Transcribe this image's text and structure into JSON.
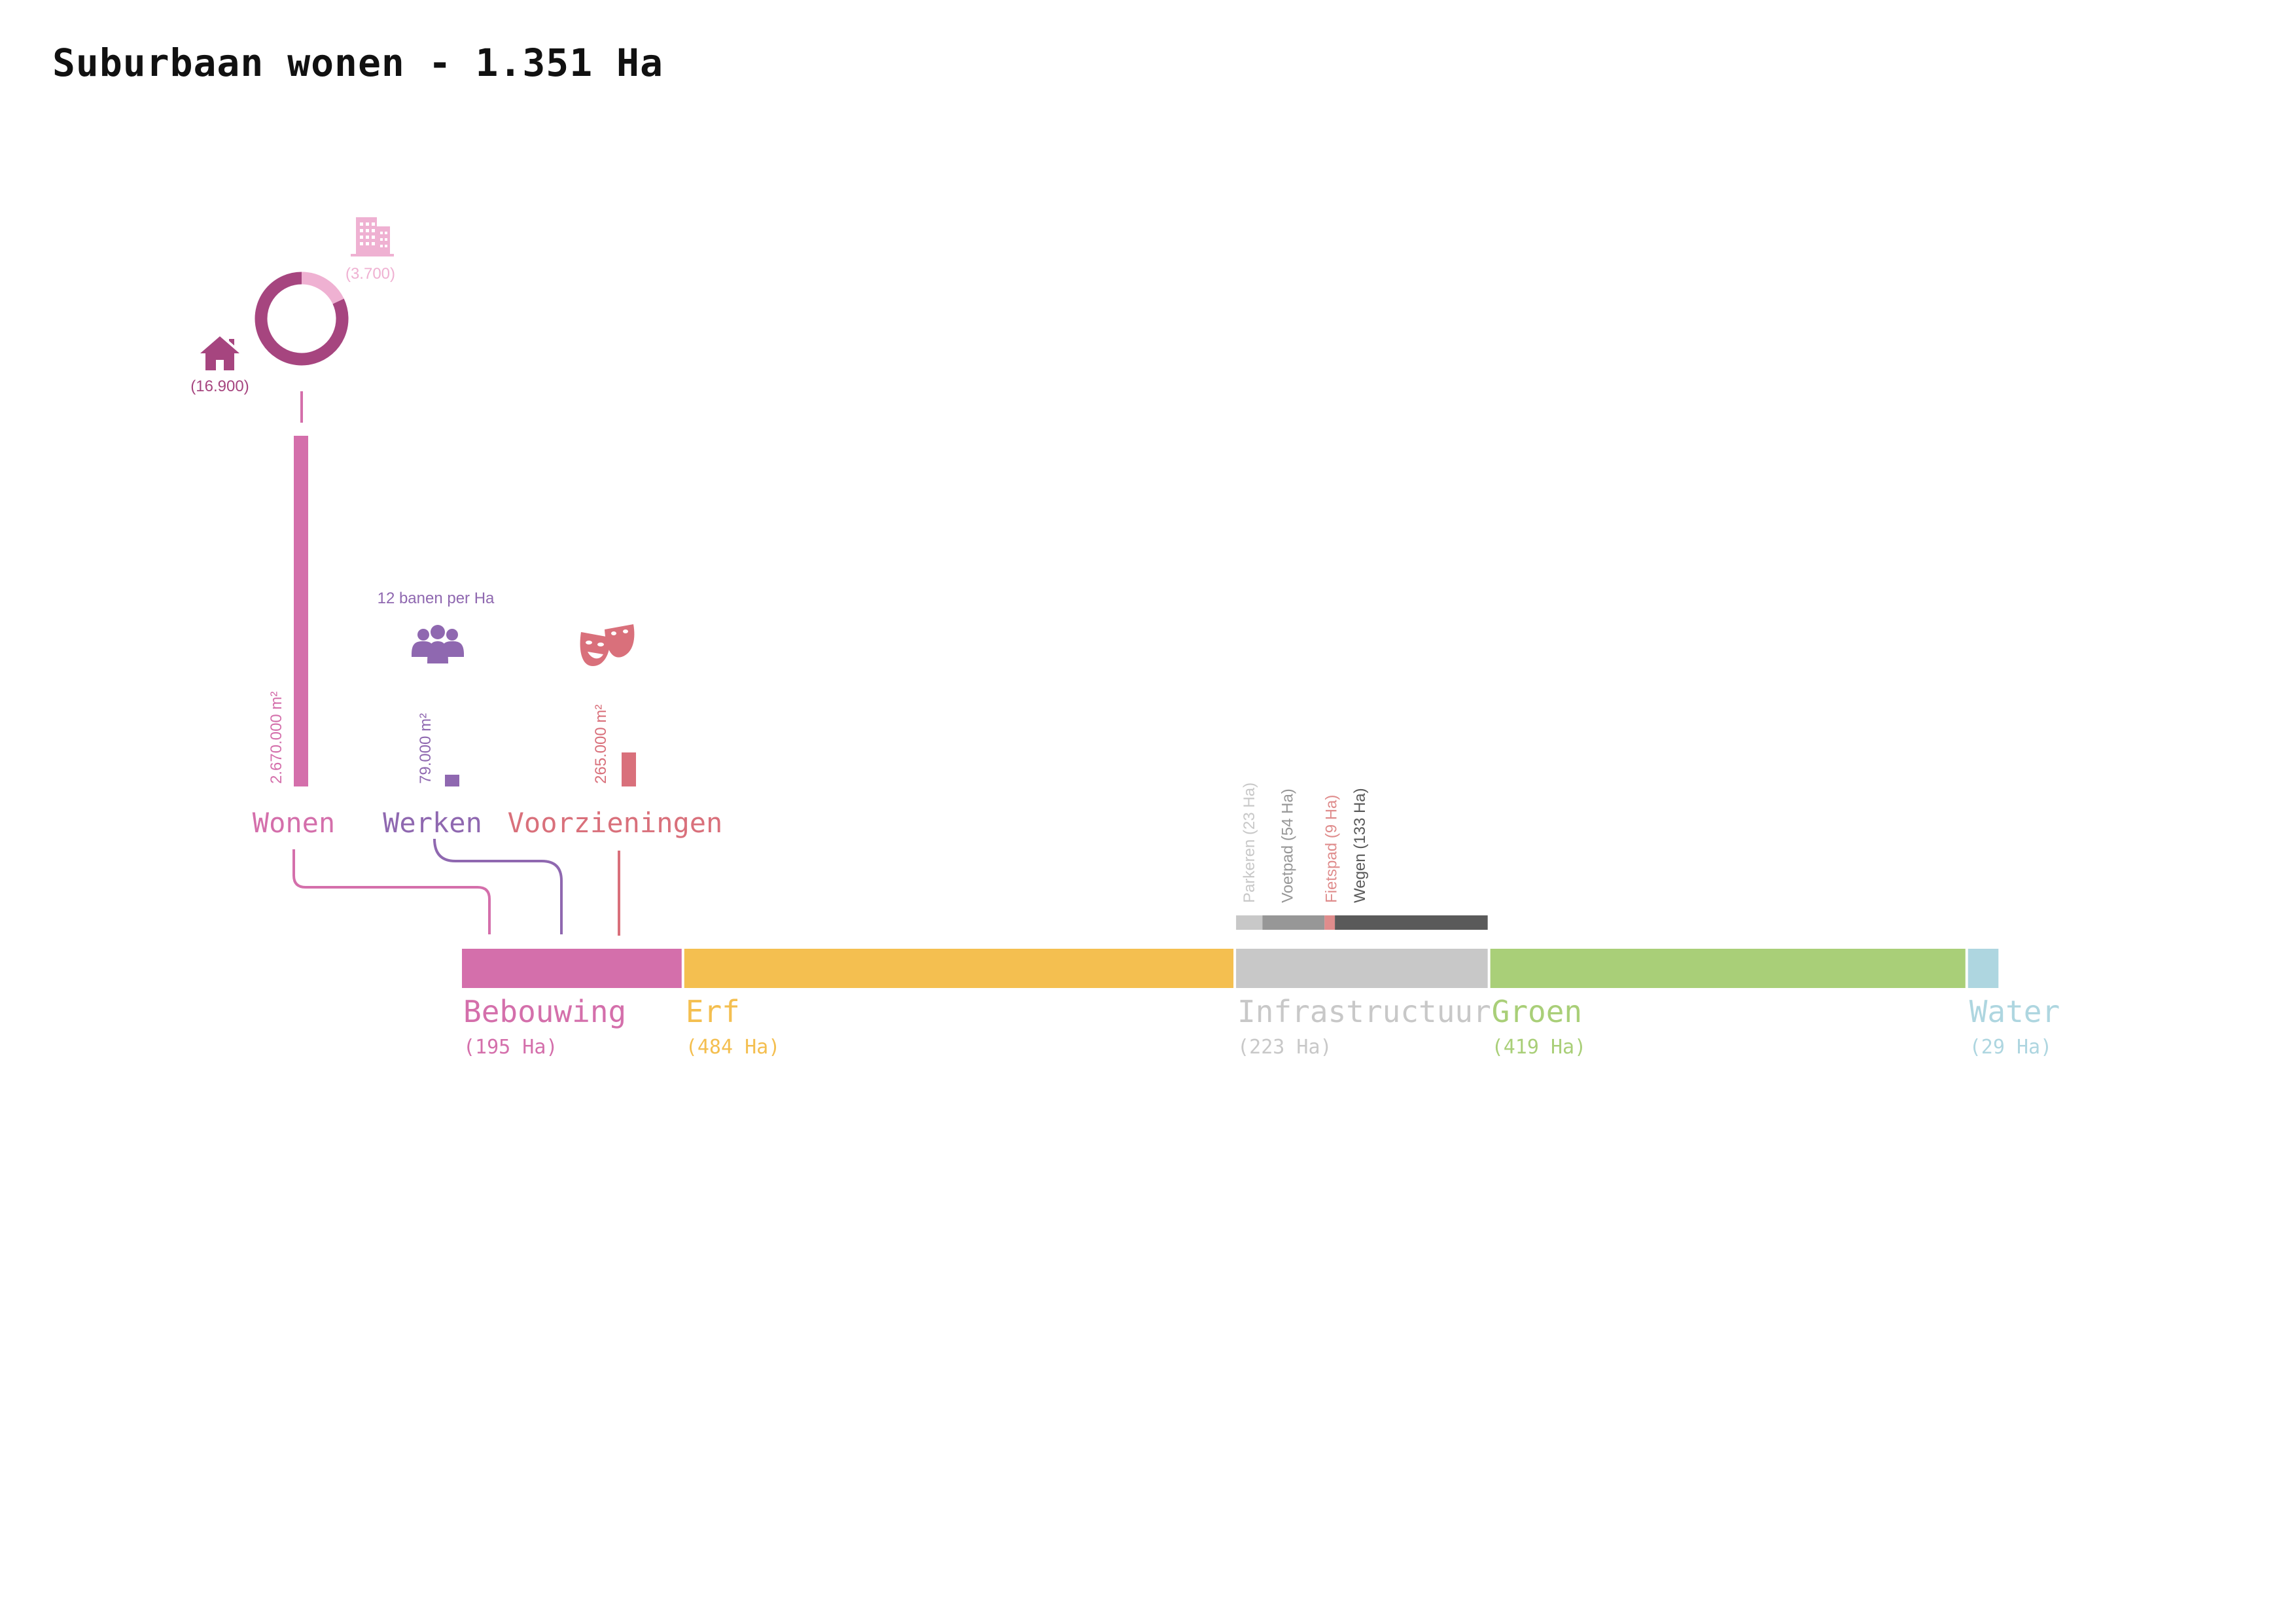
{
  "title": "Suburbaan wonen - 1.351 Ha",
  "colors": {
    "bebouwing": "#d46fab",
    "erf": "#f4bf50",
    "infrastructuur": "#c8c8c8",
    "groen": "#a9cf78",
    "water": "#aed6e0",
    "wonen": "#d46fab",
    "werken": "#8f68b0",
    "voorzieningen": "#d9707b",
    "donut_main": "#a6457f",
    "donut_light": "#efb1d2",
    "parkeren": "#c8c8c8",
    "voetpad": "#979797",
    "fietspad": "#df8c8c",
    "wegen": "#5a5a5a"
  },
  "chart_data": {
    "type": "bar",
    "title": "Suburbaan wonen - 1.351 Ha",
    "land_use": {
      "unit": "Ha",
      "total": 1351,
      "categories": [
        {
          "key": "bebouwing",
          "name": "Bebouwing",
          "value": 195,
          "value_label": "(195 Ha)"
        },
        {
          "key": "erf",
          "name": "Erf",
          "value": 484,
          "value_label": "(484 Ha)"
        },
        {
          "key": "infrastructuur",
          "name": "Infrastructuur",
          "value": 223,
          "value_label": "(223 Ha)"
        },
        {
          "key": "groen",
          "name": "Groen",
          "value": 419,
          "value_label": "(419 Ha)"
        },
        {
          "key": "water",
          "name": "Water",
          "value": 29,
          "value_label": "(29 Ha)"
        }
      ]
    },
    "infrastructure": {
      "unit": "Ha",
      "parts": [
        {
          "key": "parkeren",
          "label": "Parkeren (23 Ha)",
          "value": 23
        },
        {
          "key": "voetpad",
          "label": "Voetpad (54 Ha)",
          "value": 54
        },
        {
          "key": "fietspad",
          "label": "Fietspad (9 Ha)",
          "value": 9
        },
        {
          "key": "wegen",
          "label": "Wegen (133 Ha)",
          "value": 133
        }
      ]
    },
    "floor_area": {
      "unit": "m²",
      "items": [
        {
          "key": "wonen",
          "name": "Wonen",
          "value": 2670000,
          "value_label": "2.670.000 m²"
        },
        {
          "key": "werken",
          "name": "Werken",
          "value": 79000,
          "value_label": "79.000 m²"
        },
        {
          "key": "voorzieningen",
          "name": "Voorzieningen",
          "value": 265000,
          "value_label": "265.000 m²"
        }
      ]
    },
    "dwellings": {
      "type": "pie",
      "items": [
        {
          "key": "houses",
          "label": "(16.900)",
          "value": 16900,
          "icon": "house-icon"
        },
        {
          "key": "apartments",
          "label": "(3.700)",
          "value": 3700,
          "icon": "apartment-building-icon"
        }
      ]
    },
    "jobs": {
      "label": "12 banen per Ha",
      "value": 12,
      "icon": "people-group-icon"
    },
    "voorzieningen_icon": "theater-masks-icon"
  }
}
